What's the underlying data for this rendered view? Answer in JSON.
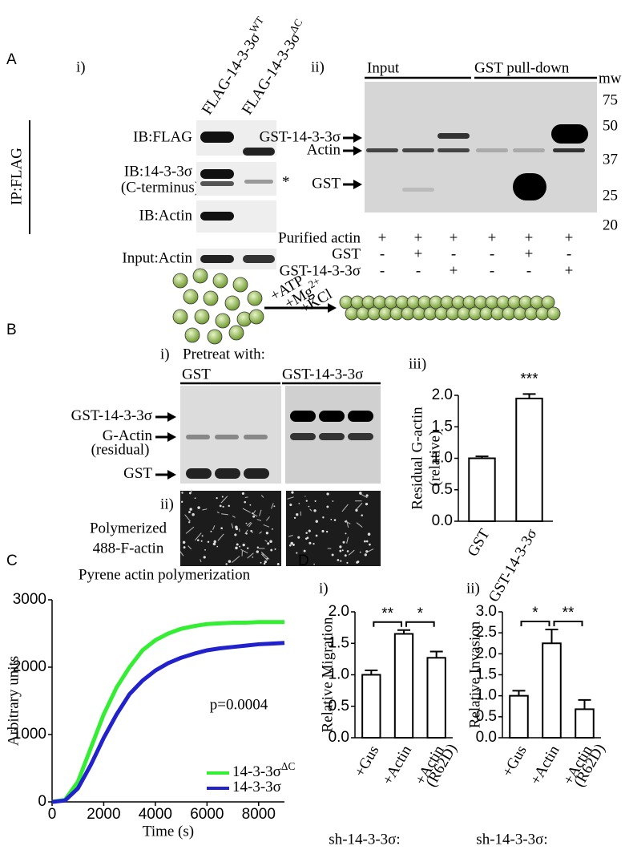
{
  "panel_labels": {
    "a": "A",
    "b": "B",
    "c": "C",
    "d": "D"
  },
  "panel_a": {
    "sub_i": "i)",
    "lanes": [
      {
        "text": "FLAG-14-3-3σ",
        "sup": "WT"
      },
      {
        "text": "FLAG-14-3-3σ",
        "sup": "ΔC"
      }
    ],
    "ip_label": "IP:FLAG",
    "blot_rows": [
      {
        "label": "IB:FLAG"
      },
      {
        "label": "IB:14-3-3σ",
        "sub": "(C-terminus)"
      },
      {
        "label": "IB:Actin"
      },
      {
        "label": "Input:Actin"
      }
    ],
    "asterisk": "*",
    "sub_ii": "ii)",
    "groups": [
      "Input",
      "GST pull-down"
    ],
    "mw_title": "mw",
    "mw_markers": [
      75,
      50,
      37,
      25,
      20
    ],
    "band_labels": [
      "GST-14-3-3σ",
      "Actin",
      "GST"
    ],
    "conditions": [
      {
        "label": "Purified actin",
        "signs": [
          "+",
          "+",
          "+",
          "+",
          "+",
          "+"
        ]
      },
      {
        "label": "GST",
        "signs": [
          "-",
          "+",
          "-",
          "-",
          "+",
          "-"
        ]
      },
      {
        "label": "GST-14-3-3σ",
        "signs": [
          "-",
          "-",
          "+",
          "-",
          "-",
          "+"
        ]
      }
    ]
  },
  "panel_b": {
    "reaction": [
      {
        "text": "+ATP"
      },
      {
        "text": "+Mg",
        "sup": "2+"
      },
      {
        "text": "+KCl"
      }
    ],
    "sub_i": "i)",
    "pretreat": "Pretreat with:",
    "groups": [
      "GST",
      "GST-14-3-3σ"
    ],
    "band_labels": [
      {
        "text": "GST-14-3-3σ"
      },
      {
        "text": "G-Actin",
        "sub": "(residual)"
      },
      {
        "text": "GST"
      }
    ],
    "sub_ii": "ii)",
    "image_caption": [
      "Polymerized",
      "488-F-actin"
    ],
    "sub_iii": "iii)"
  },
  "chart_data": [
    {
      "type": "bar",
      "ylabel": [
        "Residual G-actin",
        "(relative)"
      ],
      "categories": [
        "GST",
        "GST-14-3-3σ"
      ],
      "values": [
        1.0,
        1.95
      ],
      "errors": [
        0.03,
        0.07
      ],
      "annotation": "***",
      "color": "#ffffff",
      "ylim": [
        0,
        2.0
      ],
      "yticks": [
        {
          "value": 0,
          "label": "0.0"
        },
        {
          "value": 0.5,
          "label": "0.5"
        },
        {
          "value": 1.0,
          "label": "1.0"
        },
        {
          "value": 1.5,
          "label": "1.5"
        },
        {
          "value": 2.0,
          "label": "2.0"
        }
      ]
    },
    {
      "type": "line",
      "title": "Pyrene actin polymerization",
      "xlabel": "Time (s)",
      "ylabel": "Arbitrary units",
      "annotation": "p=0.0004",
      "x": [
        0,
        500,
        1000,
        1500,
        2000,
        2500,
        3000,
        3500,
        4000,
        4500,
        5000,
        5500,
        6000,
        6500,
        7000,
        7500,
        8000,
        8500,
        9000
      ],
      "series": [
        {
          "name": "14-3-3σ",
          "name_sup": "ΔC",
          "color": "#33ee33",
          "values": [
            0,
            30,
            300,
            800,
            1300,
            1700,
            2000,
            2250,
            2400,
            2500,
            2570,
            2610,
            2640,
            2650,
            2660,
            2660,
            2670,
            2670,
            2670
          ]
        },
        {
          "name": "14-3-3σ",
          "color": "#2222cc",
          "values": [
            0,
            20,
            200,
            550,
            950,
            1300,
            1600,
            1800,
            1950,
            2060,
            2140,
            2200,
            2250,
            2280,
            2300,
            2320,
            2340,
            2350,
            2360
          ]
        }
      ],
      "xlim": [
        0,
        9000
      ],
      "xticks": [
        0,
        2000,
        4000,
        6000,
        8000
      ],
      "ylim": [
        0,
        3000
      ],
      "yticks": [
        0,
        1000,
        2000,
        3000
      ]
    },
    {
      "type": "bar",
      "subtitle": "i)",
      "ylabel": [
        "Relative Migration"
      ],
      "xlabel": "sh-14-3-3σ:",
      "categories": [
        "+Gus",
        "+Actin",
        "+Actin"
      ],
      "category_notes": [
        null,
        null,
        "(R62D)"
      ],
      "values": [
        1.0,
        1.65,
        1.27
      ],
      "errors": [
        0.07,
        0.06,
        0.1
      ],
      "significance": [
        "**",
        "*"
      ],
      "color": "#ffffff",
      "ylim": [
        0,
        2.0
      ],
      "yticks": [
        {
          "value": 0,
          "label": "0.0"
        },
        {
          "value": 0.5,
          "label": "0.5"
        },
        {
          "value": 1.0,
          "label": "1.0"
        },
        {
          "value": 1.5,
          "label": "1.5"
        },
        {
          "value": 2.0,
          "label": "2.0"
        }
      ]
    },
    {
      "type": "bar",
      "subtitle": "ii)",
      "ylabel": [
        "Relative Invasion"
      ],
      "xlabel": "sh-14-3-3σ:",
      "categories": [
        "+Gus",
        "+Actin",
        "+Actin"
      ],
      "category_notes": [
        null,
        null,
        "(R62D)"
      ],
      "values": [
        1.0,
        2.25,
        0.68
      ],
      "errors": [
        0.12,
        0.33,
        0.22
      ],
      "significance": [
        "*",
        "**"
      ],
      "color": "#ffffff",
      "ylim": [
        0,
        3.0
      ],
      "yticks": [
        {
          "value": 0,
          "label": "0.0"
        },
        {
          "value": 0.5,
          "label": "0.5"
        },
        {
          "value": 1.0,
          "label": "1.0"
        },
        {
          "value": 1.5,
          "label": "1.5"
        },
        {
          "value": 2.0,
          "label": "2.0"
        },
        {
          "value": 2.5,
          "label": "2.5"
        },
        {
          "value": 3.0,
          "label": "3.0"
        }
      ]
    }
  ]
}
